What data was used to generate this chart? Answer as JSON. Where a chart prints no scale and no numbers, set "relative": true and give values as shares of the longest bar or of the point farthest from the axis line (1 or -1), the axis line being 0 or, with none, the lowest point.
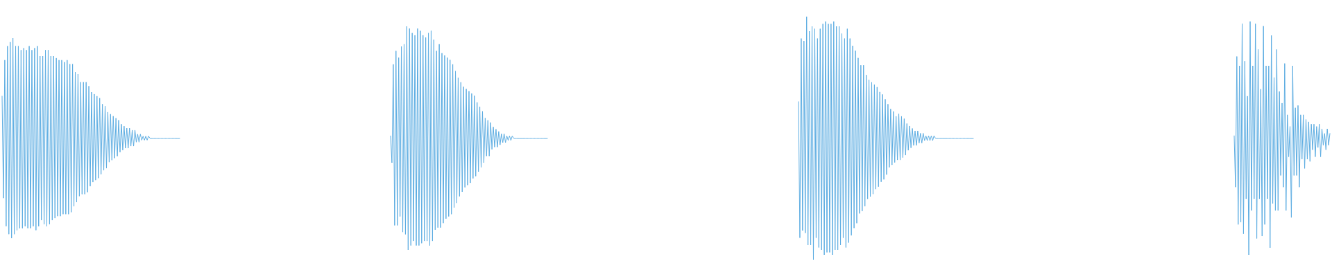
{
  "chart_data": [
    {
      "type": "line",
      "relative": true,
      "color": "#5dade2",
      "categories": [
        null,
        null,
        null,
        null,
        null,
        null,
        null,
        null,
        null,
        null,
        null,
        null,
        null,
        null,
        null,
        null,
        null,
        null,
        null,
        null,
        null,
        null,
        null,
        null,
        null,
        null,
        null,
        null,
        null,
        null,
        null,
        null,
        null,
        null,
        null,
        null,
        null,
        null,
        null,
        null,
        null,
        null,
        null,
        null,
        null,
        null,
        null,
        null,
        null,
        null,
        null,
        null,
        null,
        null,
        null,
        null,
        null,
        null,
        null,
        null,
        null,
        null,
        null,
        null,
        null,
        null,
        null,
        null,
        null,
        null,
        null,
        null,
        null,
        null,
        null,
        null,
        null,
        null,
        null,
        null,
        null,
        null,
        null,
        null,
        null,
        null,
        null,
        null,
        null,
        null,
        null,
        null,
        null,
        null,
        null,
        null,
        null,
        null,
        null,
        null,
        null,
        null,
        null,
        null,
        null,
        null,
        null,
        null,
        null,
        null,
        null,
        null,
        null,
        null,
        null,
        null,
        null,
        null,
        null,
        null,
        null,
        null,
        null,
        null,
        null,
        null,
        null,
        null,
        null,
        null,
        null,
        null
      ],
      "values": [
        0.71,
        0.2,
        0.89,
        0.06,
        0.96,
        0.02,
        0.98,
        0,
        1,
        0.02,
        0.96,
        0.04,
        0.96,
        0.05,
        0.94,
        0.05,
        0.95,
        0.06,
        0.94,
        0.05,
        0.96,
        0.05,
        0.94,
        0.06,
        0.95,
        0.04,
        0.96,
        0.06,
        0.91,
        0.09,
        0.91,
        0.07,
        0.94,
        0.06,
        0.94,
        0.07,
        0.91,
        0.09,
        0.91,
        0.1,
        0.9,
        0.11,
        0.89,
        0.11,
        0.89,
        0.12,
        0.88,
        0.12,
        0.89,
        0.12,
        0.87,
        0.13,
        0.87,
        0.16,
        0.83,
        0.18,
        0.82,
        0.21,
        0.78,
        0.22,
        0.78,
        0.22,
        0.78,
        0.23,
        0.76,
        0.26,
        0.73,
        0.28,
        0.72,
        0.29,
        0.71,
        0.3,
        0.7,
        0.32,
        0.67,
        0.34,
        0.66,
        0.35,
        0.63,
        0.38,
        0.62,
        0.39,
        0.61,
        0.4,
        0.6,
        0.41,
        0.59,
        0.43,
        0.57,
        0.44,
        0.56,
        0.45,
        0.55,
        0.45,
        0.55,
        0.46,
        0.54,
        0.46,
        0.54,
        0.48,
        0.52,
        0.48,
        0.52,
        0.49,
        0.51,
        0.49,
        0.51,
        0.49,
        0.51,
        0.5,
        0.5,
        0.5,
        0.5,
        0.5,
        0.5,
        0.5,
        0.5,
        0.5,
        0.5,
        0.5,
        0.5,
        0.5,
        0.5,
        0.5,
        0.5,
        0.5,
        0.5,
        0.5,
        0.5,
        0.5,
        0.5,
        0.5
      ]
    },
    {
      "type": "line",
      "relative": true,
      "color": "#5dade2",
      "categories": [
        null,
        null,
        null,
        null,
        null,
        null,
        null,
        null,
        null,
        null,
        null,
        null,
        null,
        null,
        null,
        null,
        null,
        null,
        null,
        null,
        null,
        null,
        null,
        null,
        null,
        null,
        null,
        null,
        null,
        null,
        null,
        null,
        null,
        null,
        null,
        null,
        null,
        null,
        null,
        null,
        null,
        null,
        null,
        null,
        null,
        null,
        null,
        null,
        null,
        null,
        null,
        null,
        null,
        null,
        null,
        null,
        null,
        null,
        null,
        null,
        null,
        null,
        null,
        null,
        null,
        null,
        null,
        null,
        null,
        null,
        null,
        null,
        null,
        null,
        null,
        null,
        null,
        null,
        null,
        null,
        null,
        null,
        null,
        null,
        null,
        null,
        null,
        null,
        null,
        null,
        null,
        null,
        null,
        null,
        null,
        null,
        null,
        null,
        null,
        null,
        null,
        null,
        null,
        null,
        null,
        null,
        null,
        null,
        null,
        null,
        null,
        null,
        null,
        null,
        null,
        null,
        null
      ],
      "values": [
        0.51,
        0.39,
        0.83,
        0.11,
        0.89,
        0.11,
        0.86,
        0.15,
        0.91,
        0.08,
        0.92,
        0.07,
        1,
        0,
        0.99,
        0.02,
        0.97,
        0.04,
        0.96,
        0.02,
        0.99,
        0.02,
        0.98,
        0.03,
        0.96,
        0.04,
        0.95,
        0.04,
        0.97,
        0.02,
        0.98,
        0.04,
        0.94,
        0.09,
        0.89,
        0.1,
        0.92,
        0.1,
        0.88,
        0.12,
        0.87,
        0.14,
        0.86,
        0.15,
        0.85,
        0.16,
        0.83,
        0.19,
        0.8,
        0.21,
        0.77,
        0.24,
        0.75,
        0.26,
        0.73,
        0.28,
        0.72,
        0.29,
        0.71,
        0.3,
        0.7,
        0.32,
        0.69,
        0.33,
        0.66,
        0.35,
        0.64,
        0.37,
        0.62,
        0.39,
        0.59,
        0.42,
        0.58,
        0.42,
        0.57,
        0.45,
        0.55,
        0.46,
        0.54,
        0.46,
        0.53,
        0.47,
        0.52,
        0.48,
        0.52,
        0.48,
        0.51,
        0.49,
        0.51,
        0.49,
        0.51,
        0.5,
        0.5,
        0.5,
        0.5,
        0.5,
        0.5,
        0.5,
        0.5,
        0.5,
        0.5,
        0.5,
        0.5,
        0.5,
        0.5,
        0.5,
        0.5,
        0.5,
        0.5,
        0.5,
        0.5,
        0.5,
        0.5,
        0.5,
        0.5,
        0.5,
        0.5
      ]
    },
    {
      "type": "line",
      "relative": true,
      "color": "#5dade2",
      "categories": [
        null,
        null,
        null,
        null,
        null,
        null,
        null,
        null,
        null,
        null,
        null,
        null,
        null,
        null,
        null,
        null,
        null,
        null,
        null,
        null,
        null,
        null,
        null,
        null,
        null,
        null,
        null,
        null,
        null,
        null,
        null,
        null,
        null,
        null,
        null,
        null,
        null,
        null,
        null,
        null,
        null,
        null,
        null,
        null,
        null,
        null,
        null,
        null,
        null,
        null,
        null,
        null,
        null,
        null,
        null,
        null,
        null,
        null,
        null,
        null,
        null,
        null,
        null,
        null,
        null,
        null,
        null,
        null,
        null,
        null,
        null,
        null,
        null,
        null,
        null,
        null,
        null,
        null,
        null,
        null,
        null,
        null,
        null,
        null,
        null,
        null,
        null,
        null,
        null,
        null,
        null,
        null,
        null,
        null,
        null,
        null,
        null,
        null,
        null,
        null,
        null,
        null,
        null,
        null,
        null,
        null,
        null,
        null,
        null,
        null,
        null,
        null,
        null,
        null,
        null,
        null,
        null,
        null,
        null,
        null,
        null,
        null,
        null,
        null,
        null,
        null,
        null,
        null,
        null,
        null
      ],
      "values": [
        0.65,
        0.09,
        0.91,
        0.12,
        0.9,
        0.11,
        1,
        0.06,
        0.94,
        0.06,
        0.96,
        0,
        0.95,
        0.09,
        0.91,
        0.05,
        0.95,
        0.04,
        0.97,
        0.02,
        0.98,
        0.03,
        0.97,
        0.03,
        0.97,
        0.02,
        0.98,
        0.04,
        0.96,
        0.04,
        0.96,
        0.06,
        0.93,
        0.09,
        0.91,
        0.05,
        0.95,
        0.07,
        0.91,
        0.1,
        0.88,
        0.13,
        0.86,
        0.15,
        0.83,
        0.19,
        0.8,
        0.2,
        0.8,
        0.22,
        0.76,
        0.25,
        0.74,
        0.26,
        0.73,
        0.27,
        0.72,
        0.29,
        0.71,
        0.3,
        0.69,
        0.32,
        0.68,
        0.33,
        0.66,
        0.35,
        0.64,
        0.38,
        0.62,
        0.39,
        0.61,
        0.4,
        0.59,
        0.41,
        0.6,
        0.41,
        0.59,
        0.42,
        0.58,
        0.43,
        0.56,
        0.45,
        0.55,
        0.46,
        0.54,
        0.47,
        0.53,
        0.47,
        0.53,
        0.48,
        0.52,
        0.48,
        0.52,
        0.49,
        0.51,
        0.49,
        0.51,
        0.49,
        0.51,
        0.49,
        0.51,
        0.5,
        0.5,
        0.5,
        0.5,
        0.5,
        0.5,
        0.5,
        0.5,
        0.5,
        0.5,
        0.5,
        0.5,
        0.5,
        0.5,
        0.5,
        0.5,
        0.5,
        0.5,
        0.5,
        0.5,
        0.5,
        0.5,
        0.5,
        0.5,
        0.5,
        0.5,
        0.5,
        0.5,
        0.5
      ]
    },
    {
      "type": "line",
      "relative": true,
      "color": "#5dade2",
      "categories": [
        null,
        null,
        null,
        null,
        null,
        null,
        null,
        null,
        null,
        null,
        null,
        null,
        null,
        null,
        null,
        null,
        null,
        null,
        null,
        null,
        null,
        null,
        null,
        null,
        null,
        null,
        null,
        null,
        null,
        null,
        null,
        null,
        null,
        null,
        null,
        null,
        null,
        null,
        null,
        null,
        null,
        null,
        null,
        null,
        null,
        null,
        null,
        null,
        null,
        null,
        null,
        null,
        null,
        null,
        null,
        null,
        null,
        null,
        null,
        null,
        null,
        null,
        null,
        null,
        null,
        null,
        null,
        null,
        null,
        null,
        null,
        null,
        null
      ],
      "values": [
        0.51,
        0.29,
        0.85,
        0.13,
        0.81,
        0.14,
        0.99,
        0.09,
        0.83,
        0.24,
        0.68,
        0,
        1,
        0.19,
        0.81,
        0.24,
        0.99,
        0.07,
        0.88,
        0.24,
        0.71,
        0.08,
        0.98,
        0.13,
        0.81,
        0.24,
        0.81,
        0.03,
        0.94,
        0.22,
        0.76,
        0.19,
        0.88,
        0.19,
        0.7,
        0.34,
        0.65,
        0.29,
        0.82,
        0.19,
        0.6,
        0.42,
        0.55,
        0.16,
        0.81,
        0.34,
        0.63,
        0.34,
        0.64,
        0.29,
        0.6,
        0.41,
        0.6,
        0.37,
        0.58,
        0.41,
        0.57,
        0.4,
        0.56,
        0.45,
        0.56,
        0.42,
        0.55,
        0.46,
        0.56,
        0.42,
        0.54,
        0.47,
        0.52,
        0.45,
        0.54,
        0.47,
        0.52
      ]
    }
  ]
}
